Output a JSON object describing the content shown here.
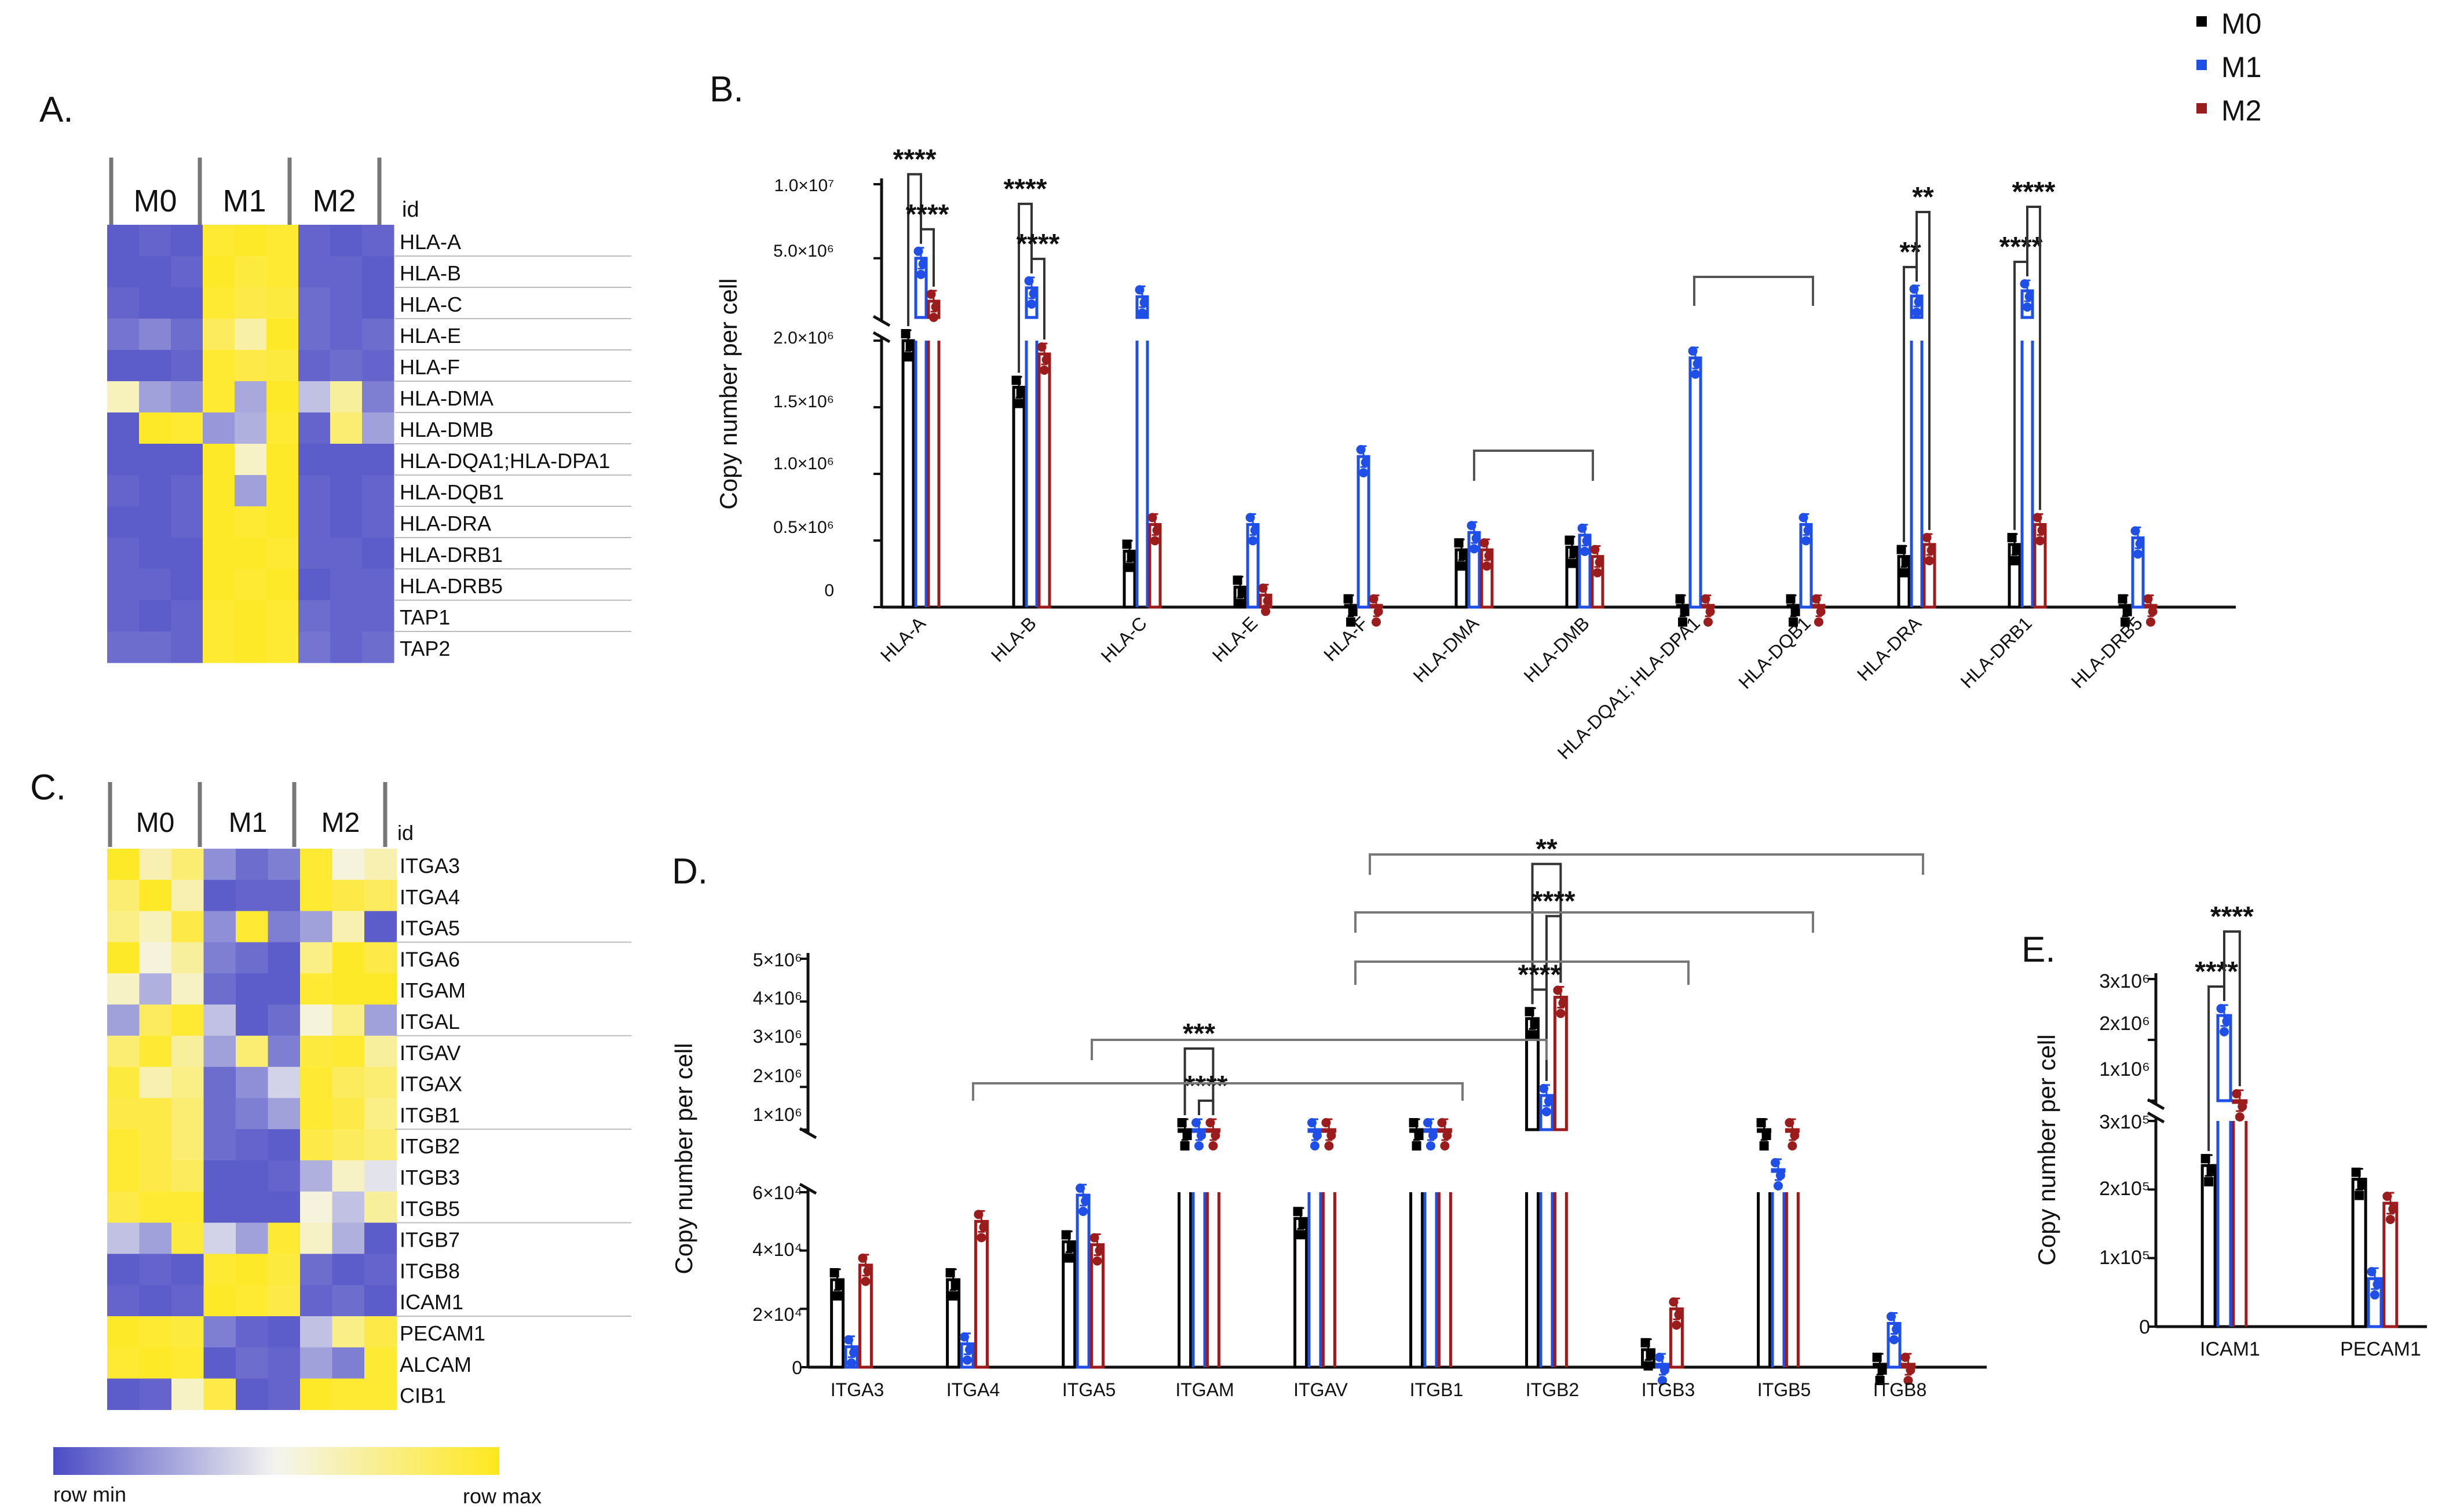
{
  "colors": {
    "M0": "#000000",
    "M1": "#1f4fe6",
    "M2": "#9a1c1c",
    "hm_low": "#4b4bc6",
    "hm_mid": "#f4f4f0",
    "hm_high": "#ffe81e"
  },
  "legend": [
    "M0",
    "M1",
    "M2"
  ],
  "panels": {
    "a": "A.",
    "b": "B.",
    "c": "C.",
    "d": "D.",
    "e": "E."
  },
  "heatmap_a": {
    "groups": [
      "M0",
      "M1",
      "M2"
    ],
    "id_label": "id",
    "rows": [
      "HLA-A",
      "HLA-B",
      "HLA-C",
      "HLA-E",
      "HLA-F",
      "HLA-DMA",
      "HLA-DMB",
      "HLA-DQA1;HLA-DPA1",
      "HLA-DQB1",
      "HLA-DRA",
      "HLA-DRB1",
      "HLA-DRB5",
      "TAP1",
      "TAP2"
    ],
    "values": [
      [
        -0.9,
        -0.85,
        -0.9,
        0.9,
        0.95,
        0.9,
        -0.85,
        -0.9,
        -0.85
      ],
      [
        -0.9,
        -0.9,
        -0.85,
        0.95,
        0.85,
        0.9,
        -0.85,
        -0.85,
        -0.9
      ],
      [
        -0.85,
        -0.9,
        -0.9,
        0.9,
        0.8,
        0.85,
        -0.8,
        -0.85,
        -0.9
      ],
      [
        -0.75,
        -0.65,
        -0.8,
        0.7,
        0.35,
        0.95,
        -0.8,
        -0.85,
        -0.8
      ],
      [
        -0.9,
        -0.9,
        -0.85,
        0.9,
        0.8,
        0.85,
        -0.85,
        -0.8,
        -0.85
      ],
      [
        0.25,
        -0.5,
        -0.6,
        0.9,
        -0.45,
        0.95,
        -0.3,
        0.4,
        -0.7
      ],
      [
        -0.9,
        0.95,
        0.9,
        -0.55,
        -0.4,
        0.9,
        -0.85,
        0.6,
        -0.5
      ],
      [
        -0.9,
        -0.9,
        -0.9,
        0.95,
        0.2,
        0.95,
        -0.9,
        -0.9,
        -0.9
      ],
      [
        -0.85,
        -0.9,
        -0.85,
        0.95,
        -0.5,
        0.95,
        -0.85,
        -0.9,
        -0.85
      ],
      [
        -0.9,
        -0.9,
        -0.85,
        0.95,
        0.9,
        0.95,
        -0.85,
        -0.9,
        -0.85
      ],
      [
        -0.85,
        -0.9,
        -0.9,
        0.95,
        0.95,
        0.9,
        -0.85,
        -0.85,
        -0.9
      ],
      [
        -0.85,
        -0.85,
        -0.9,
        0.95,
        0.9,
        0.95,
        -0.9,
        -0.85,
        -0.85
      ],
      [
        -0.85,
        -0.9,
        -0.85,
        0.9,
        0.95,
        0.9,
        -0.8,
        -0.85,
        -0.85
      ],
      [
        -0.8,
        -0.8,
        -0.85,
        0.9,
        0.95,
        0.9,
        -0.75,
        -0.85,
        -0.8
      ]
    ]
  },
  "heatmap_c": {
    "groups": [
      "M0",
      "M1",
      "M2"
    ],
    "id_label": "id",
    "rows": [
      "ITGA3",
      "ITGA4",
      "ITGA5",
      "ITGA6",
      "ITGAM",
      "ITGAL",
      "ITGAV",
      "ITGAX",
      "ITGB1",
      "ITGB2",
      "ITGB3",
      "ITGB5",
      "ITGB7",
      "ITGB8",
      "ICAM1",
      "PECAM1",
      "ALCAM",
      "CIB1"
    ],
    "values": [
      [
        0.95,
        0.3,
        0.6,
        -0.6,
        -0.8,
        -0.7,
        0.9,
        0.1,
        0.3
      ],
      [
        0.6,
        0.95,
        0.3,
        -0.9,
        -0.85,
        -0.85,
        0.9,
        0.8,
        0.7
      ],
      [
        0.5,
        0.25,
        0.8,
        -0.6,
        0.9,
        -0.7,
        -0.5,
        0.3,
        -0.9
      ],
      [
        0.95,
        0.1,
        0.4,
        -0.7,
        -0.8,
        -0.9,
        0.5,
        0.95,
        0.8
      ],
      [
        0.2,
        -0.4,
        0.2,
        -0.8,
        -0.9,
        -0.9,
        0.9,
        0.95,
        0.95
      ],
      [
        -0.5,
        0.7,
        0.9,
        -0.3,
        -0.9,
        -0.8,
        0.1,
        0.5,
        -0.5
      ],
      [
        0.6,
        0.9,
        0.4,
        -0.5,
        0.6,
        -0.7,
        0.85,
        0.9,
        0.4
      ],
      [
        0.85,
        0.3,
        0.5,
        -0.8,
        -0.6,
        -0.2,
        0.9,
        0.7,
        0.6
      ],
      [
        0.8,
        0.8,
        0.6,
        -0.8,
        -0.7,
        -0.5,
        0.9,
        0.8,
        0.5
      ],
      [
        0.9,
        0.8,
        0.6,
        -0.8,
        -0.85,
        -0.9,
        0.8,
        0.7,
        0.6
      ],
      [
        0.9,
        0.8,
        0.7,
        -0.9,
        -0.9,
        -0.85,
        -0.4,
        0.2,
        -0.1
      ],
      [
        0.8,
        0.9,
        0.9,
        -0.9,
        -0.9,
        -0.9,
        0.1,
        -0.3,
        0.4
      ],
      [
        -0.3,
        -0.5,
        0.85,
        -0.2,
        -0.5,
        0.9,
        0.2,
        -0.4,
        -0.9
      ],
      [
        -0.9,
        -0.85,
        -0.9,
        0.9,
        0.95,
        0.85,
        -0.8,
        -0.9,
        -0.85
      ],
      [
        -0.85,
        -0.9,
        -0.85,
        0.95,
        0.9,
        0.8,
        -0.85,
        -0.8,
        -0.9
      ],
      [
        0.95,
        0.9,
        0.85,
        -0.7,
        -0.85,
        -0.9,
        -0.3,
        0.5,
        0.8
      ],
      [
        0.9,
        0.95,
        0.9,
        -0.9,
        -0.8,
        -0.85,
        -0.5,
        -0.7,
        0.9
      ],
      [
        -0.9,
        -0.85,
        0.2,
        0.8,
        -0.9,
        -0.85,
        0.95,
        0.9,
        0.9
      ]
    ],
    "scale_min": "row min",
    "scale_max": "row max"
  },
  "chart_data": [
    {
      "id": "B",
      "type": "bar",
      "ylabel": "Copy number per cell",
      "ylim_lower": [
        0,
        2000000
      ],
      "ylim_upper": [
        1000000,
        10000000
      ],
      "y_ticks_lower": [
        "0",
        "0.5×10⁶",
        "1.0×10⁶",
        "1.5×10⁶",
        "2.0×10⁶"
      ],
      "y_ticks_upper": [
        "5.0×10⁶",
        "1.0×10⁷"
      ],
      "categories": [
        "HLA-A",
        "HLA-B",
        "HLA-C",
        "HLA-E",
        "HLA-F",
        "HLA-DMA",
        "HLA-DMB",
        "HLA-DQA1; HLA-DPA1",
        "HLA-DQB1",
        "HLA-DRA",
        "HLA-DRB1",
        "HLA-DRB5"
      ],
      "series": [
        {
          "name": "M0",
          "values": [
            2000000,
            1650000,
            420000,
            150000,
            10000,
            430000,
            450000,
            10000,
            10000,
            380000,
            470000,
            10000
          ]
        },
        {
          "name": "M1",
          "values": [
            5000000,
            3000000,
            2400000,
            620000,
            1130000,
            560000,
            540000,
            1870000,
            620000,
            2450000,
            2800000,
            520000
          ]
        },
        {
          "name": "M2",
          "values": [
            2100000,
            1900000,
            620000,
            90000,
            10000,
            430000,
            380000,
            10000,
            10000,
            470000,
            620000,
            10000
          ]
        }
      ],
      "significance": [
        {
          "label": "****",
          "cat": 0,
          "from": "M0",
          "to": "M1",
          "level": 1
        },
        {
          "label": "****",
          "cat": 0,
          "from": "M1",
          "to": "M2",
          "level": 0
        },
        {
          "label": "****",
          "cat": 1,
          "from": "M0",
          "to": "M1",
          "level": 1
        },
        {
          "label": "****",
          "cat": 1,
          "from": "M1",
          "to": "M2",
          "level": 0
        },
        {
          "label": "**",
          "cat": 9,
          "from": "M0",
          "to": "M1",
          "level": 0
        },
        {
          "label": "**",
          "cat": 9,
          "from": "M1",
          "to": "M2",
          "level": 1
        },
        {
          "label": "****",
          "cat": 10,
          "from": "M0",
          "to": "M1",
          "level": 0
        },
        {
          "label": "****",
          "cat": 10,
          "from": "M1",
          "to": "M2",
          "level": 1
        }
      ]
    },
    {
      "id": "D",
      "type": "bar",
      "ylabel": "Copy number per cell",
      "ylim_lower": [
        0,
        60000
      ],
      "ylim_upper": [
        1000000,
        5000000
      ],
      "y_ticks_lower": [
        "0",
        "2×10⁴",
        "4×10⁴",
        "6×10⁴"
      ],
      "y_ticks_upper": [
        "1×10⁶",
        "2×10⁶",
        "3×10⁶",
        "4×10⁶",
        "5×10⁶"
      ],
      "categories": [
        "ITGA3",
        "ITGA4",
        "ITGA5",
        "ITGAM",
        "ITGAV",
        "ITGB1",
        "ITGB2",
        "ITGB3",
        "ITGB5",
        "ITGB8"
      ],
      "series": [
        {
          "name": "M0",
          "values": [
            30000,
            30000,
            43000,
            1000000,
            51000,
            1000000,
            3600000,
            6000,
            1000000,
            1000
          ]
        },
        {
          "name": "M1",
          "values": [
            7000,
            8000,
            59000,
            1000000,
            1000000,
            1000000,
            1800000,
            1000,
            64000,
            15000
          ]
        },
        {
          "name": "M2",
          "values": [
            35000,
            50000,
            42000,
            1000000,
            1000000,
            1000000,
            4100000,
            20000,
            1000000,
            1000
          ]
        }
      ],
      "significance": [
        {
          "label": "***",
          "cat": 3,
          "from": "M0",
          "to": "M2",
          "level": 1
        },
        {
          "label": "****",
          "cat": 3,
          "from": "M1",
          "to": "M2",
          "level": 0
        },
        {
          "label": "**",
          "cat": 6,
          "from": "M0",
          "to": "M2",
          "level": 2
        },
        {
          "label": "****",
          "cat": 6,
          "from": "M1",
          "to": "M2",
          "level": 1
        },
        {
          "label": "****",
          "cat": 6,
          "from": "M0",
          "to": "M1",
          "level": 0
        }
      ]
    },
    {
      "id": "E",
      "type": "bar",
      "ylabel": "Copy number per cell",
      "ylim_lower": [
        0,
        300000
      ],
      "ylim_upper": [
        1000000,
        3000000
      ],
      "y_ticks_lower": [
        "0",
        "1x10⁵",
        "2x10⁵",
        "3x10⁵"
      ],
      "y_ticks_upper": [
        "1x10⁶",
        "2x10⁶",
        "3x10⁶"
      ],
      "categories": [
        "ICAM1",
        "PECAM1"
      ],
      "series": [
        {
          "name": "M0",
          "values": [
            235000,
            215000
          ]
        },
        {
          "name": "M1",
          "values": [
            2400000,
            70000
          ]
        },
        {
          "name": "M2",
          "values": [
            1000000,
            180000
          ]
        }
      ],
      "significance": [
        {
          "label": "****",
          "cat": 0,
          "from": "M0",
          "to": "M1",
          "level": 0
        },
        {
          "label": "****",
          "cat": 0,
          "from": "M1",
          "to": "M2",
          "level": 1
        }
      ]
    }
  ]
}
